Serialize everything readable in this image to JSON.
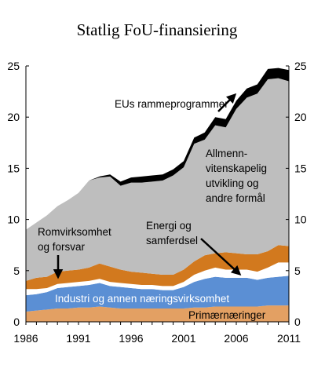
{
  "chart_data": {
    "type": "area",
    "stacked": true,
    "title": "Statlig FoU-finansiering",
    "xlabel": "",
    "ylabel": "",
    "x": [
      1986,
      1987,
      1988,
      1989,
      1990,
      1991,
      1992,
      1993,
      1994,
      1995,
      1996,
      1997,
      1998,
      1999,
      2000,
      2001,
      2002,
      2003,
      2004,
      2005,
      2006,
      2007,
      2008,
      2009,
      2010,
      2011
    ],
    "xticks": [
      1986,
      1991,
      1996,
      2001,
      2006,
      2011
    ],
    "yticks": [
      0,
      5,
      10,
      15,
      20,
      25
    ],
    "xlim": [
      1986,
      2011
    ],
    "ylim": [
      0,
      25
    ],
    "grid": false,
    "secondary_y_axis": true,
    "series": [
      {
        "name": "Primærnæringer",
        "color": "#E3A063",
        "values": [
          1.0,
          1.1,
          1.2,
          1.3,
          1.3,
          1.4,
          1.4,
          1.5,
          1.4,
          1.3,
          1.3,
          1.3,
          1.3,
          1.3,
          1.3,
          1.3,
          1.4,
          1.4,
          1.5,
          1.5,
          1.5,
          1.5,
          1.5,
          1.6,
          1.6,
          1.6
        ]
      },
      {
        "name": "Industri og annen næringsvirksomhet",
        "color": "#5B8FD4",
        "values": [
          1.6,
          1.6,
          1.7,
          2.0,
          2.1,
          2.1,
          2.2,
          2.3,
          2.1,
          2.1,
          2.0,
          1.9,
          1.9,
          1.8,
          1.8,
          2.1,
          2.5,
          2.8,
          2.9,
          2.8,
          2.8,
          2.8,
          2.6,
          2.7,
          2.8,
          2.9
        ]
      },
      {
        "name": "Energi og samferdsel",
        "color": "#FFFFFF",
        "values": [
          0.6,
          0.5,
          0.4,
          0.4,
          0.4,
          0.4,
          0.4,
          0.4,
          0.4,
          0.4,
          0.4,
          0.4,
          0.4,
          0.4,
          0.4,
          0.5,
          0.7,
          0.8,
          0.9,
          0.8,
          0.8,
          0.8,
          0.8,
          1.0,
          1.4,
          1.3
        ]
      },
      {
        "name": "Romvirksomhet og forsvar",
        "color": "#D2791E",
        "values": [
          0.8,
          1.1,
          1.1,
          1.2,
          1.2,
          1.2,
          1.3,
          1.5,
          1.5,
          1.3,
          1.2,
          1.2,
          1.1,
          1.1,
          1.1,
          1.2,
          1.3,
          1.5,
          1.4,
          1.7,
          1.6,
          1.5,
          1.7,
          1.6,
          1.7,
          1.6
        ]
      },
      {
        "name": "Allmenn-vitenskapelig utvikling og andre formål",
        "color": "#BEBEBE",
        "values": [
          5.0,
          5.4,
          6.0,
          6.4,
          6.9,
          7.5,
          8.5,
          8.4,
          8.8,
          8.2,
          8.7,
          8.8,
          9.0,
          9.2,
          9.7,
          10.0,
          11.5,
          11.3,
          12.5,
          12.2,
          14.1,
          15.3,
          15.7,
          16.8,
          16.3,
          16.1
        ]
      },
      {
        "name": "EUs rammeprogrammer",
        "color": "#000000",
        "values": [
          0.0,
          0.0,
          0.0,
          0.0,
          0.0,
          0.0,
          0.0,
          0.1,
          0.2,
          0.4,
          0.5,
          0.6,
          0.6,
          0.6,
          0.6,
          0.6,
          0.6,
          0.7,
          0.8,
          0.8,
          0.8,
          0.9,
          0.9,
          1.0,
          1.0,
          1.1
        ]
      }
    ],
    "annotations": [
      {
        "text": "EUs rammeprogrammer",
        "series": "EUs rammeprogrammer"
      },
      {
        "text": "Allmenn-",
        "series": "Allmenn-vitenskapelig utvikling og andre formål"
      },
      {
        "text": "vitenskapelig",
        "series": "Allmenn-vitenskapelig utvikling og andre formål"
      },
      {
        "text": "utvikling og",
        "series": "Allmenn-vitenskapelig utvikling og andre formål"
      },
      {
        "text": "andre formål",
        "series": "Allmenn-vitenskapelig utvikling og andre formål"
      },
      {
        "text": "Energi og",
        "series": "Energi og samferdsel"
      },
      {
        "text": "samferdsel",
        "series": "Energi og samferdsel"
      },
      {
        "text": "Romvirksomhet",
        "series": "Romvirksomhet og forsvar"
      },
      {
        "text": "og forsvar",
        "series": "Romvirksomhet og forsvar"
      },
      {
        "text": "Industri og annen næringsvirksomhet",
        "series": "Industri og annen næringsvirksomhet"
      },
      {
        "text": "Primærnæringer",
        "series": "Primærnæringer"
      }
    ]
  }
}
